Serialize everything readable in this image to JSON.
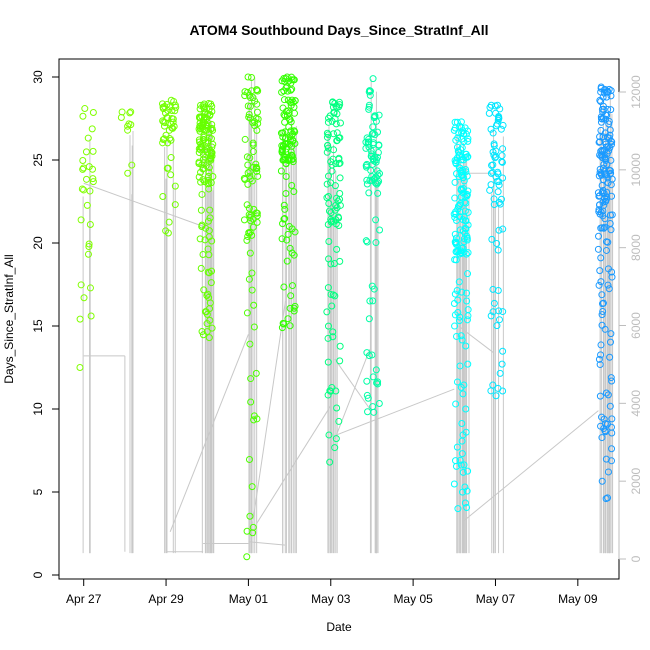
{
  "chart_data": {
    "type": "scatter",
    "title": "ATOM4 Southbound Days_Since_StratInf_All",
    "xlabel": "Date",
    "ylabel": "Days_Since_StratInf_All",
    "x_ticks": [
      "Apr 27",
      "Apr 29",
      "May 01",
      "May 03",
      "May 05",
      "May 07",
      "May 09"
    ],
    "y_ticks": [
      "0",
      "5",
      "10",
      "15",
      "20",
      "25",
      "30"
    ],
    "y2_ticks": [
      "0",
      "2000",
      "4000",
      "6000",
      "8000",
      "10000",
      "12000"
    ],
    "xlim_days_from_apr27": [
      -0.6,
      13.0
    ],
    "ylim": [
      0,
      30
    ],
    "y2lim": [
      0,
      12000
    ],
    "clusters": [
      {
        "day": 0.0,
        "color": "#80ff00",
        "count": 30,
        "min": 12.5,
        "max": 28.1
      },
      {
        "day": 1.0,
        "color": "#80ff00",
        "count": 10,
        "min": 24.2,
        "max": 27.9
      },
      {
        "day": 2.0,
        "color": "#73ff00",
        "count": 45,
        "min": 20.6,
        "max": 28.6
      },
      {
        "day": 2.9,
        "color": "#66ff00",
        "count": 140,
        "min": 14.3,
        "max": 28.4
      },
      {
        "day": 4.0,
        "color": "#4dff00",
        "count": 90,
        "min": 1.1,
        "max": 30.0
      },
      {
        "day": 4.9,
        "color": "#33ff00",
        "count": 120,
        "min": 14.9,
        "max": 30.0
      },
      {
        "day": 6.0,
        "color": "#00ff80",
        "count": 100,
        "min": 6.8,
        "max": 28.5
      },
      {
        "day": 6.95,
        "color": "#00ffa6",
        "count": 90,
        "min": 9.8,
        "max": 29.9
      },
      {
        "day": 9.1,
        "color": "#00ffff",
        "count": 170,
        "min": 4.0,
        "max": 27.3
      },
      {
        "day": 9.95,
        "color": "#00e6ff",
        "count": 70,
        "min": 10.8,
        "max": 28.3
      },
      {
        "day": 12.6,
        "color": "#1a9aff",
        "count": 170,
        "min": 4.6,
        "max": 29.4
      }
    ]
  }
}
